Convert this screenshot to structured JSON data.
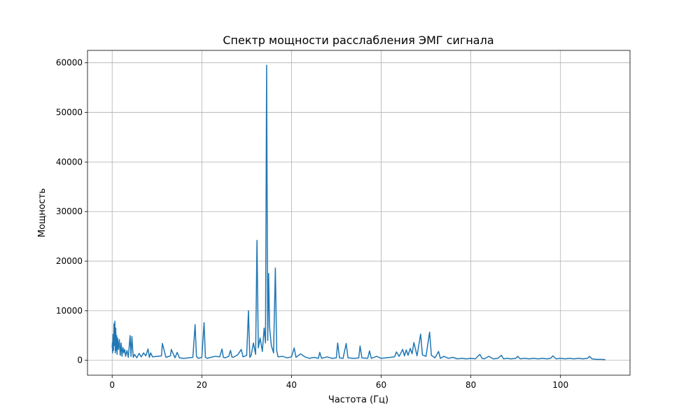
{
  "chart_data": {
    "type": "line",
    "title": "Спектр мощности расслабления ЭМГ сигнала",
    "xlabel": "Частота (Гц)",
    "ylabel": "Мощность",
    "xlim": [
      -5.5,
      115.5
    ],
    "ylim": [
      -3000,
      62500
    ],
    "xticks": [
      0,
      20,
      40,
      60,
      80,
      100
    ],
    "yticks": [
      0,
      10000,
      20000,
      30000,
      40000,
      50000,
      60000
    ],
    "grid": true,
    "colors": {
      "series": "#1f77b4",
      "grid": "#b0b0b0",
      "axes": "#000000"
    },
    "series": [
      {
        "name": "",
        "x": [
          0,
          0.05,
          0.1,
          0.2,
          0.3,
          0.4,
          0.5,
          0.6,
          0.7,
          0.8,
          0.9,
          1.0,
          1.1,
          1.2,
          1.4,
          1.6,
          1.8,
          2.0,
          2.2,
          2.4,
          2.6,
          2.8,
          3.0,
          3.3,
          3.6,
          4.0,
          4.2,
          4.4,
          4.7,
          5.0,
          5.5,
          6.0,
          6.5,
          7.0,
          7.5,
          8.0,
          8.3,
          8.6,
          9.0,
          10.0,
          11.0,
          11.2,
          12.0,
          13.0,
          13.2,
          14.0,
          14.5,
          15.0,
          16.0,
          17.0,
          18.0,
          18.5,
          18.8,
          19.2,
          20.0,
          20.5,
          20.8,
          21.2,
          22.0,
          23.0,
          24.0,
          24.5,
          24.8,
          25.2,
          26.0,
          26.4,
          26.7,
          27.0,
          28.0,
          28.8,
          29.2,
          30.0,
          30.4,
          30.7,
          31.0,
          31.5,
          32.0,
          32.3,
          32.6,
          33.0,
          33.5,
          33.9,
          34.2,
          34.45,
          34.7,
          34.9,
          35.1,
          35.5,
          36.0,
          36.4,
          36.7,
          37.0,
          38.0,
          39.0,
          40.0,
          40.6,
          41.0,
          42.0,
          43.0,
          44.0,
          45.0,
          46.0,
          46.3,
          46.7,
          48.0,
          49.0,
          50.0,
          50.3,
          50.7,
          51.5,
          52.2,
          52.6,
          54.0,
          55.0,
          55.3,
          55.7,
          57.0,
          57.4,
          57.8,
          59.0,
          60.0,
          61.0,
          62.0,
          63.0,
          63.4,
          64.0,
          64.8,
          65.2,
          65.6,
          66.0,
          66.5,
          66.9,
          67.3,
          68.0,
          68.8,
          69.2,
          70.0,
          70.8,
          71.2,
          72.0,
          72.8,
          73.2,
          74.0,
          75.0,
          76.0,
          77.0,
          78.0,
          79.0,
          80.0,
          81.0,
          82.0,
          82.5,
          83.0,
          84.0,
          85.0,
          86.0,
          86.8,
          87.3,
          88.0,
          89.0,
          90.0,
          90.5,
          91.0,
          92.0,
          93.0,
          94.0,
          95.0,
          96.0,
          97.0,
          97.8,
          98.3,
          99.0,
          100.0,
          101.0,
          102.0,
          103.0,
          104.0,
          105.0,
          106.0,
          106.5,
          107.0,
          108.0,
          109.0,
          110.0
        ],
        "y": [
          2500,
          3500,
          1500,
          5200,
          2000,
          7400,
          3000,
          7900,
          1500,
          6500,
          2000,
          5000,
          1200,
          4500,
          2200,
          4200,
          1000,
          3500,
          800,
          2600,
          1500,
          2200,
          800,
          2000,
          600,
          5000,
          800,
          4800,
          600,
          1200,
          500,
          1400,
          700,
          1500,
          900,
          2300,
          600,
          1500,
          700,
          800,
          900,
          3400,
          600,
          900,
          2200,
          500,
          1600,
          500,
          400,
          500,
          600,
          7200,
          800,
          400,
          600,
          7600,
          600,
          400,
          600,
          800,
          700,
          2300,
          600,
          500,
          800,
          2000,
          700,
          600,
          1100,
          2200,
          700,
          1000,
          10000,
          600,
          1000,
          3500,
          1200,
          24200,
          2500,
          4500,
          1800,
          6500,
          3500,
          59500,
          4000,
          17500,
          6800,
          3000,
          1500,
          18600,
          2000,
          700,
          800,
          500,
          700,
          2500,
          600,
          1300,
          700,
          400,
          600,
          400,
          1600,
          400,
          700,
          400,
          500,
          3500,
          500,
          400,
          3400,
          500,
          400,
          500,
          2900,
          500,
          400,
          1900,
          400,
          800,
          400,
          500,
          600,
          700,
          1700,
          800,
          2200,
          900,
          2100,
          1000,
          2400,
          1300,
          3600,
          900,
          5300,
          1100,
          800,
          5700,
          1000,
          500,
          1800,
          400,
          800,
          400,
          600,
          300,
          400,
          300,
          400,
          300,
          1200,
          400,
          300,
          800,
          300,
          400,
          1000,
          300,
          400,
          300,
          400,
          800,
          300,
          400,
          300,
          400,
          300,
          400,
          300,
          400,
          900,
          300,
          400,
          300,
          400,
          300,
          400,
          300,
          400,
          800,
          300,
          200,
          200,
          150
        ]
      }
    ]
  }
}
